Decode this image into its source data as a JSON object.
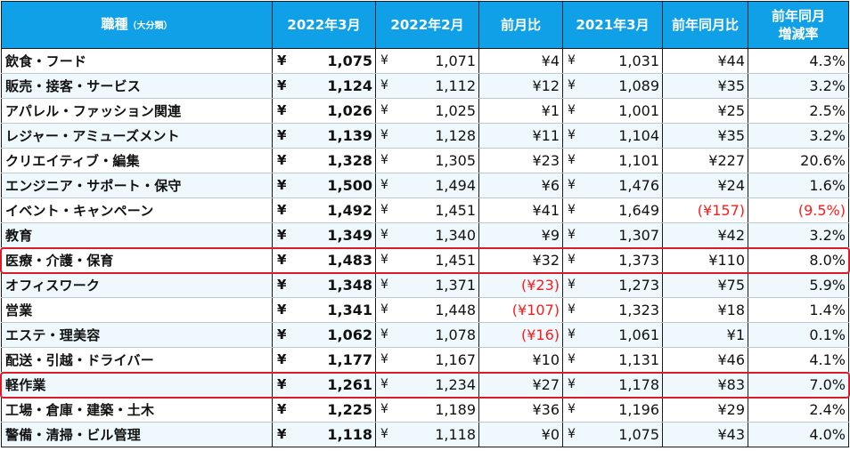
{
  "headers": {
    "category": "職種",
    "category_sub": "（大分類）",
    "m2203": "2022年3月",
    "m2202": "2022年2月",
    "mom": "前月比",
    "m2103": "2021年3月",
    "yoy": "前年同月比",
    "yoy_rate_1": "前年同月",
    "yoy_rate_2": "増減率"
  },
  "currency_symbol": "¥",
  "colors": {
    "header_bg": "#10a0e8",
    "negative": "#ff1a1a",
    "highlight": "#d81c2c"
  },
  "rows": [
    {
      "name": "飲食・フード",
      "v2203": "1,075",
      "v2202": "1,071",
      "mom": "¥4",
      "v2103": "1,031",
      "yoy": "¥44",
      "rate": "4.3%"
    },
    {
      "name": "販売・接客・サービス",
      "v2203": "1,124",
      "v2202": "1,112",
      "mom": "¥12",
      "v2103": "1,089",
      "yoy": "¥35",
      "rate": "3.2%"
    },
    {
      "name": "アパレル・ファッション関連",
      "v2203": "1,026",
      "v2202": "1,025",
      "mom": "¥1",
      "v2103": "1,001",
      "yoy": "¥25",
      "rate": "2.5%"
    },
    {
      "name": "レジャー・アミューズメント",
      "v2203": "1,139",
      "v2202": "1,128",
      "mom": "¥11",
      "v2103": "1,104",
      "yoy": "¥35",
      "rate": "3.2%"
    },
    {
      "name": "クリエイティブ・編集",
      "v2203": "1,328",
      "v2202": "1,305",
      "mom": "¥23",
      "v2103": "1,101",
      "yoy": "¥227",
      "rate": "20.6%"
    },
    {
      "name": "エンジニア・サポート・保守",
      "v2203": "1,500",
      "v2202": "1,494",
      "mom": "¥6",
      "v2103": "1,476",
      "yoy": "¥24",
      "rate": "1.6%"
    },
    {
      "name": "イベント・キャンペーン",
      "v2203": "1,492",
      "v2202": "1,451",
      "mom": "¥41",
      "v2103": "1,649",
      "yoy": "(¥157)",
      "rate": "(9.5%)",
      "yoy_neg": true,
      "rate_neg": true
    },
    {
      "name": "教育",
      "v2203": "1,349",
      "v2202": "1,340",
      "mom": "¥9",
      "v2103": "1,307",
      "yoy": "¥42",
      "rate": "3.2%"
    },
    {
      "name": "医療・介護・保育",
      "v2203": "1,483",
      "v2202": "1,451",
      "mom": "¥32",
      "v2103": "1,373",
      "yoy": "¥110",
      "rate": "8.0%",
      "highlight": true
    },
    {
      "name": "オフィスワーク",
      "v2203": "1,348",
      "v2202": "1,371",
      "mom": "(¥23)",
      "v2103": "1,273",
      "yoy": "¥75",
      "rate": "5.9%",
      "mom_neg": true
    },
    {
      "name": "営業",
      "v2203": "1,341",
      "v2202": "1,448",
      "mom": "(¥107)",
      "v2103": "1,323",
      "yoy": "¥18",
      "rate": "1.4%",
      "mom_neg": true
    },
    {
      "name": "エステ・理美容",
      "v2203": "1,062",
      "v2202": "1,078",
      "mom": "(¥16)",
      "v2103": "1,061",
      "yoy": "¥1",
      "rate": "0.1%",
      "mom_neg": true
    },
    {
      "name": "配送・引越・ドライバー",
      "v2203": "1,177",
      "v2202": "1,167",
      "mom": "¥10",
      "v2103": "1,131",
      "yoy": "¥46",
      "rate": "4.1%"
    },
    {
      "name": "軽作業",
      "v2203": "1,261",
      "v2202": "1,234",
      "mom": "¥27",
      "v2103": "1,178",
      "yoy": "¥83",
      "rate": "7.0%",
      "highlight": true
    },
    {
      "name": "工場・倉庫・建築・土木",
      "v2203": "1,225",
      "v2202": "1,189",
      "mom": "¥36",
      "v2103": "1,196",
      "yoy": "¥29",
      "rate": "2.4%"
    },
    {
      "name": "警備・清掃・ビル管理",
      "v2203": "1,118",
      "v2202": "1,118",
      "mom": "¥0",
      "v2103": "1,075",
      "yoy": "¥43",
      "rate": "4.0%"
    }
  ]
}
